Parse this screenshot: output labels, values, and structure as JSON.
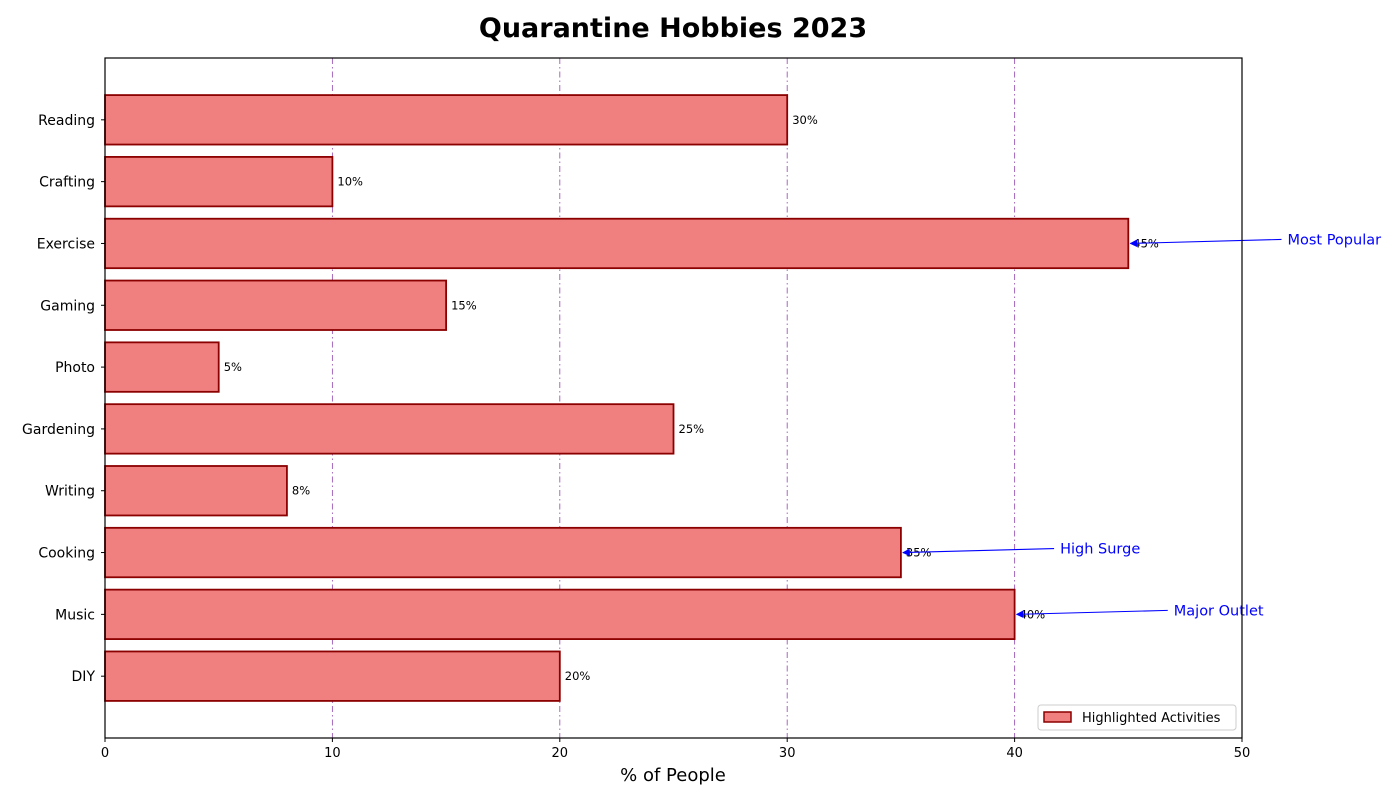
{
  "chart_data": {
    "type": "bar",
    "orientation": "horizontal",
    "title": "Quarantine Hobbies 2023",
    "xlabel": "% of People",
    "ylabel": "",
    "xlim": [
      0,
      50
    ],
    "xticks": [
      0,
      10,
      20,
      30,
      40,
      50
    ],
    "grid": "x-dashdot",
    "categories": [
      "Reading",
      "Crafting",
      "Exercise",
      "Gaming",
      "Photo",
      "Gardening",
      "Writing",
      "Cooking",
      "Music",
      "DIY"
    ],
    "values": [
      30,
      10,
      45,
      15,
      5,
      25,
      8,
      35,
      40,
      20
    ],
    "data_labels": [
      "30%",
      "10%",
      "45%",
      "15%",
      "5%",
      "25%",
      "8%",
      "35%",
      "40%",
      "20%"
    ],
    "legend": {
      "entries": [
        "Highlighted Activities"
      ],
      "placement": "lower-right"
    },
    "annotations": [
      {
        "category": "Exercise",
        "value": 45,
        "text": "Most Popular",
        "text_x": 52
      },
      {
        "category": "Cooking",
        "value": 35,
        "text": "High Surge",
        "text_x": 42
      },
      {
        "category": "Music",
        "value": 40,
        "text": "Major Outlet",
        "text_x": 47
      }
    ],
    "colors": {
      "bar_fill": "#f08080",
      "bar_edge": "#8b0000",
      "grid": "#9b59b6",
      "annotation": "#0000ff"
    }
  }
}
